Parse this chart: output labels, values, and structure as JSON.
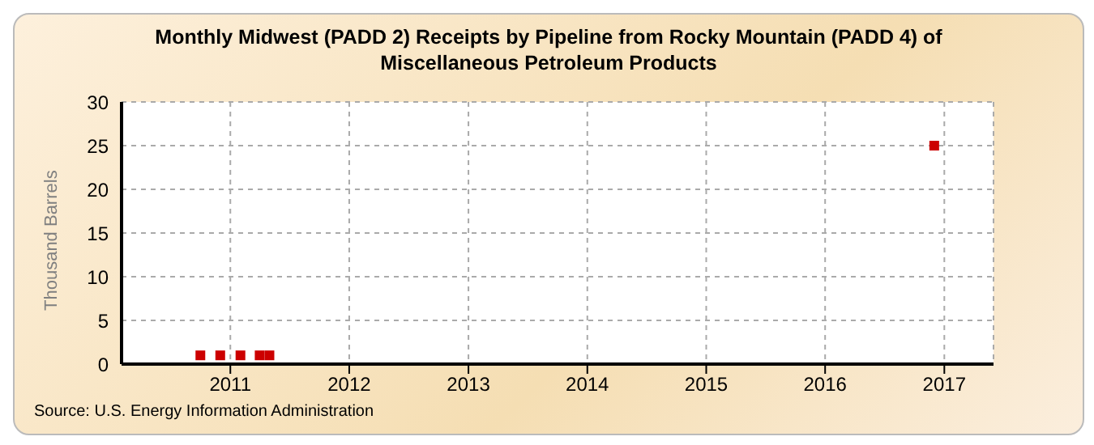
{
  "chart_data": {
    "type": "scatter",
    "title": "Monthly Midwest (PADD 2) Receipts by Pipeline from Rocky Mountain (PADD 4) of Miscellaneous Petroleum Products",
    "ylabel": "Thousand Barrels",
    "annotations": [
      "Source: U.S. Energy Information Administration"
    ],
    "x": [
      "2010-10",
      "2010-12",
      "2011-02",
      "2011-04",
      "2011-05",
      "2016-12"
    ],
    "series": [
      {
        "color": "#cc0000",
        "values": [
          1,
          1,
          1,
          1,
          1,
          25
        ]
      }
    ],
    "xlim": [
      "2010-02",
      "2017-06"
    ],
    "xticks": [
      {
        "value": "2011",
        "label": "2011"
      },
      {
        "value": "2012",
        "label": "2012"
      },
      {
        "value": "2013",
        "label": "2013"
      },
      {
        "value": "2014",
        "label": "2014"
      },
      {
        "value": "2015",
        "label": "2015"
      },
      {
        "value": "2016",
        "label": "2016"
      },
      {
        "value": "2017",
        "label": "2017"
      }
    ],
    "ylim": [
      0,
      30
    ],
    "yticks": [
      0,
      5,
      10,
      15,
      20,
      25,
      30
    ],
    "grid": true,
    "marker": "square",
    "legend": false
  }
}
